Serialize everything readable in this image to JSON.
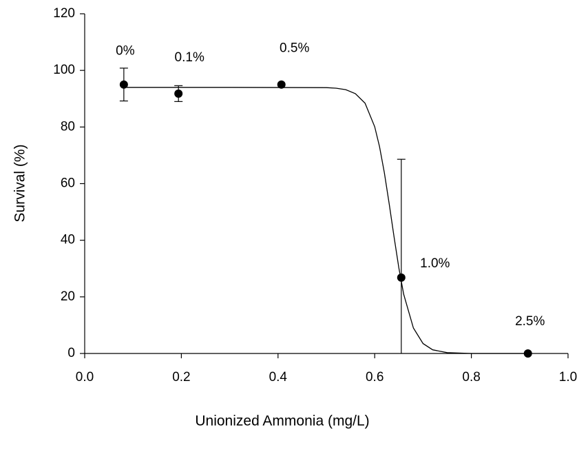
{
  "chart_data": {
    "type": "scatter",
    "x_label": "Unionized Ammonia (mg/L)",
    "y_label": "Survival (%)",
    "points": {
      "x": [
        0.081,
        0.194,
        0.407,
        0.655,
        0.917
      ],
      "values": [
        95,
        91.8,
        95,
        26.8,
        0
      ],
      "errors": [
        5.8,
        2.8,
        null,
        41.8,
        null
      ],
      "labels": [
        "0%",
        "0.1%",
        "0.5%",
        "1.0%",
        "2.5%"
      ],
      "color": "#000000"
    },
    "curve": {
      "x": [
        0.081,
        0.3,
        0.5,
        0.52,
        0.54,
        0.56,
        0.58,
        0.6,
        0.61,
        0.62,
        0.63,
        0.64,
        0.65,
        0.66,
        0.68,
        0.7,
        0.72,
        0.75,
        0.8,
        0.917
      ],
      "values": [
        94,
        94,
        93.9,
        93.7,
        93.2,
        91.8,
        88.4,
        80.1,
        73.1,
        63.9,
        52.8,
        41.2,
        30.2,
        20.9,
        9.0,
        3.5,
        1.3,
        0.3,
        0.0,
        0.0
      ],
      "color": "#000000"
    },
    "xlim": [
      0,
      1
    ],
    "xticks": [
      {
        "value": 0,
        "label": "0.0"
      },
      0.2,
      0.4,
      0.6,
      0.8,
      {
        "value": 1,
        "label": "1.0"
      }
    ],
    "ylim": [
      0,
      120
    ],
    "yticks": [
      0,
      20,
      40,
      60,
      80,
      100,
      120
    ]
  }
}
